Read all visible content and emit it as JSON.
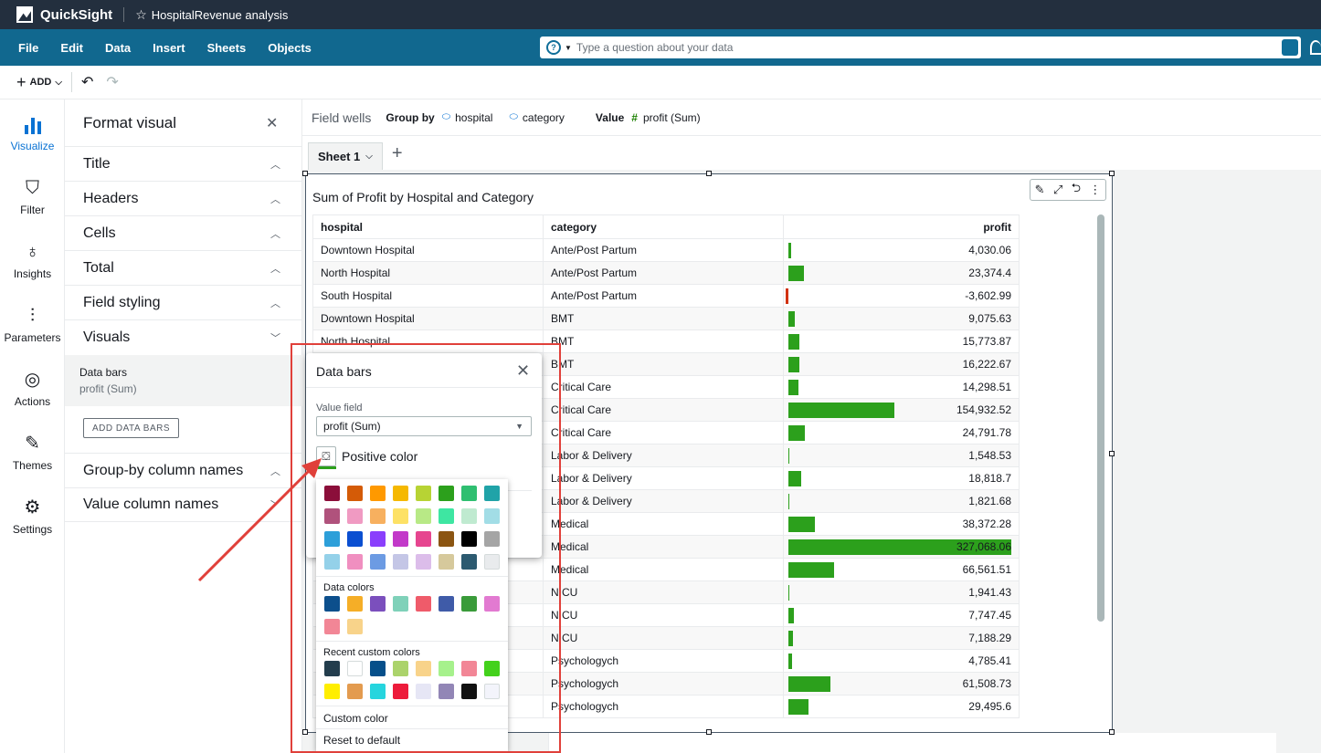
{
  "app": {
    "name": "QuickSight",
    "analysis_title": "HospitalRevenue analysis"
  },
  "menubar": {
    "items": [
      "File",
      "Edit",
      "Data",
      "Insert",
      "Sheets",
      "Objects"
    ],
    "question_placeholder": "Type a question about your data"
  },
  "toolbar": {
    "add_label": "ADD"
  },
  "rail": {
    "items": [
      {
        "label": "Visualize",
        "icon": "bar-chart-icon",
        "active": true
      },
      {
        "label": "Filter",
        "icon": "filter-icon",
        "active": false
      },
      {
        "label": "Insights",
        "icon": "lightbulb-icon",
        "active": false
      },
      {
        "label": "Parameters",
        "icon": "sliders-icon",
        "active": false
      },
      {
        "label": "Actions",
        "icon": "cursor-click-icon",
        "active": false
      },
      {
        "label": "Themes",
        "icon": "brush-icon",
        "active": false
      },
      {
        "label": "Settings",
        "icon": "gear-icon",
        "active": false
      }
    ]
  },
  "format_panel": {
    "title": "Format visual",
    "sections": [
      {
        "label": "Title",
        "state": "up"
      },
      {
        "label": "Headers",
        "state": "up"
      },
      {
        "label": "Cells",
        "state": "up"
      },
      {
        "label": "Total",
        "state": "up"
      },
      {
        "label": "Field styling",
        "state": "up"
      },
      {
        "label": "Visuals",
        "state": "down"
      }
    ],
    "data_bars_item": {
      "title": "Data bars",
      "subtitle": "profit (Sum)"
    },
    "add_data_bars_label": "ADD DATA BARS",
    "sections_after": [
      {
        "label": "Group-by column names",
        "state": "up"
      },
      {
        "label": "Value column names",
        "state": "down"
      }
    ]
  },
  "field_wells": {
    "label": "Field wells",
    "group_by_label": "Group by",
    "group_by": [
      "hospital",
      "category"
    ],
    "value_label": "Value",
    "value": "profit (Sum)"
  },
  "sheets": {
    "tabs": [
      "Sheet 1"
    ]
  },
  "visual": {
    "title": "Sum of Profit by Hospital and Category",
    "columns": [
      "hospital",
      "category",
      "profit"
    ],
    "rows": [
      {
        "hospital": "Downtown Hospital",
        "category": "Ante/Post Partum",
        "profit": 4030.06,
        "profit_label": "4,030.06"
      },
      {
        "hospital": "North Hospital",
        "category": "Ante/Post Partum",
        "profit": 23374.4,
        "profit_label": "23,374.4"
      },
      {
        "hospital": "South Hospital",
        "category": "Ante/Post Partum",
        "profit": -3602.99,
        "profit_label": "-3,602.99"
      },
      {
        "hospital": "Downtown Hospital",
        "category": "BMT",
        "profit": 9075.63,
        "profit_label": "9,075.63"
      },
      {
        "hospital": "North Hospital",
        "category": "BMT",
        "profit": 15773.87,
        "profit_label": "15,773.87"
      },
      {
        "hospital": "",
        "category": "BMT",
        "profit": 16222.67,
        "profit_label": "16,222.67"
      },
      {
        "hospital": "",
        "category": "Critical Care",
        "profit": 14298.51,
        "profit_label": "14,298.51"
      },
      {
        "hospital": "",
        "category": "Critical Care",
        "profit": 154932.52,
        "profit_label": "154,932.52"
      },
      {
        "hospital": "",
        "category": "Critical Care",
        "profit": 24791.78,
        "profit_label": "24,791.78"
      },
      {
        "hospital": "",
        "category": "Labor & Delivery",
        "profit": 1548.53,
        "profit_label": "1,548.53"
      },
      {
        "hospital": "",
        "category": "Labor & Delivery",
        "profit": 18818.7,
        "profit_label": "18,818.7"
      },
      {
        "hospital": "",
        "category": "Labor & Delivery",
        "profit": 1821.68,
        "profit_label": "1,821.68"
      },
      {
        "hospital": "",
        "category": "Medical",
        "profit": 38372.28,
        "profit_label": "38,372.28"
      },
      {
        "hospital": "",
        "category": "Medical",
        "profit": 327068.06,
        "profit_label": "327,068.06"
      },
      {
        "hospital": "",
        "category": "Medical",
        "profit": 66561.51,
        "profit_label": "66,561.51"
      },
      {
        "hospital": "",
        "category": "NICU",
        "profit": 1941.43,
        "profit_label": "1,941.43"
      },
      {
        "hospital": "",
        "category": "NICU",
        "profit": 7747.45,
        "profit_label": "7,747.45"
      },
      {
        "hospital": "",
        "category": "NICU",
        "profit": 7188.29,
        "profit_label": "7,188.29"
      },
      {
        "hospital": "",
        "category": "Psychologych",
        "profit": 4785.41,
        "profit_label": "4,785.41"
      },
      {
        "hospital": "",
        "category": "Psychologych",
        "profit": 61508.73,
        "profit_label": "61,508.73"
      },
      {
        "hospital": "",
        "category": "Psychologych",
        "profit": 29495.6,
        "profit_label": "29,495.6"
      }
    ],
    "positive_bar_color": "#2ca01c",
    "negative_bar_color": "#d13212"
  },
  "data_bars_popover": {
    "title": "Data bars",
    "value_field_label": "Value field",
    "value_field": "profit (Sum)",
    "positive_color_label": "Positive color"
  },
  "color_picker": {
    "grid_colors": [
      "#8b0e3a",
      "#d45b07",
      "#ff9900",
      "#f5b800",
      "#b7d334",
      "#2ca01c",
      "#2fbf71",
      "#20a3a8",
      "#b0527c",
      "#f09ac2",
      "#f7b05f",
      "#fde165",
      "#b8e986",
      "#3ee6a2",
      "#bfead0",
      "#a2dde6",
      "#2d9fd9",
      "#0b4fd1",
      "#8a3ffc",
      "#c239c9",
      "#e6458f",
      "#8b5512",
      "#000000",
      "#a5a5a5",
      "#94d1e9",
      "#f08fc0",
      "#6c9be3",
      "#c4c6e6",
      "#dcbdea",
      "#d6c99c",
      "#2c5a70",
      "#e9ebed"
    ],
    "data_colors_label": "Data colors",
    "data_colors": [
      "#0c4f8c",
      "#f5ae27",
      "#7b4fbd",
      "#7fd1b9",
      "#ef5b6a",
      "#3f5ba8",
      "#3a9b3a",
      "#e27ad1",
      "#f28696",
      "#f8d38a"
    ],
    "recent_label": "Recent custom colors",
    "recent_colors": [
      "#233d4d",
      "#ffffff",
      "#064f8a",
      "#abd36b",
      "#f8d38a",
      "#a6f18c",
      "#f28696",
      "#43d11c",
      "#ffee00",
      "#e39b4f",
      "#26d5de",
      "#ed1b3b",
      "#e6e6f5",
      "#9286b6",
      "#111111",
      "#f3f4fb"
    ],
    "custom_color_label": "Custom color",
    "reset_label": "Reset to default"
  }
}
